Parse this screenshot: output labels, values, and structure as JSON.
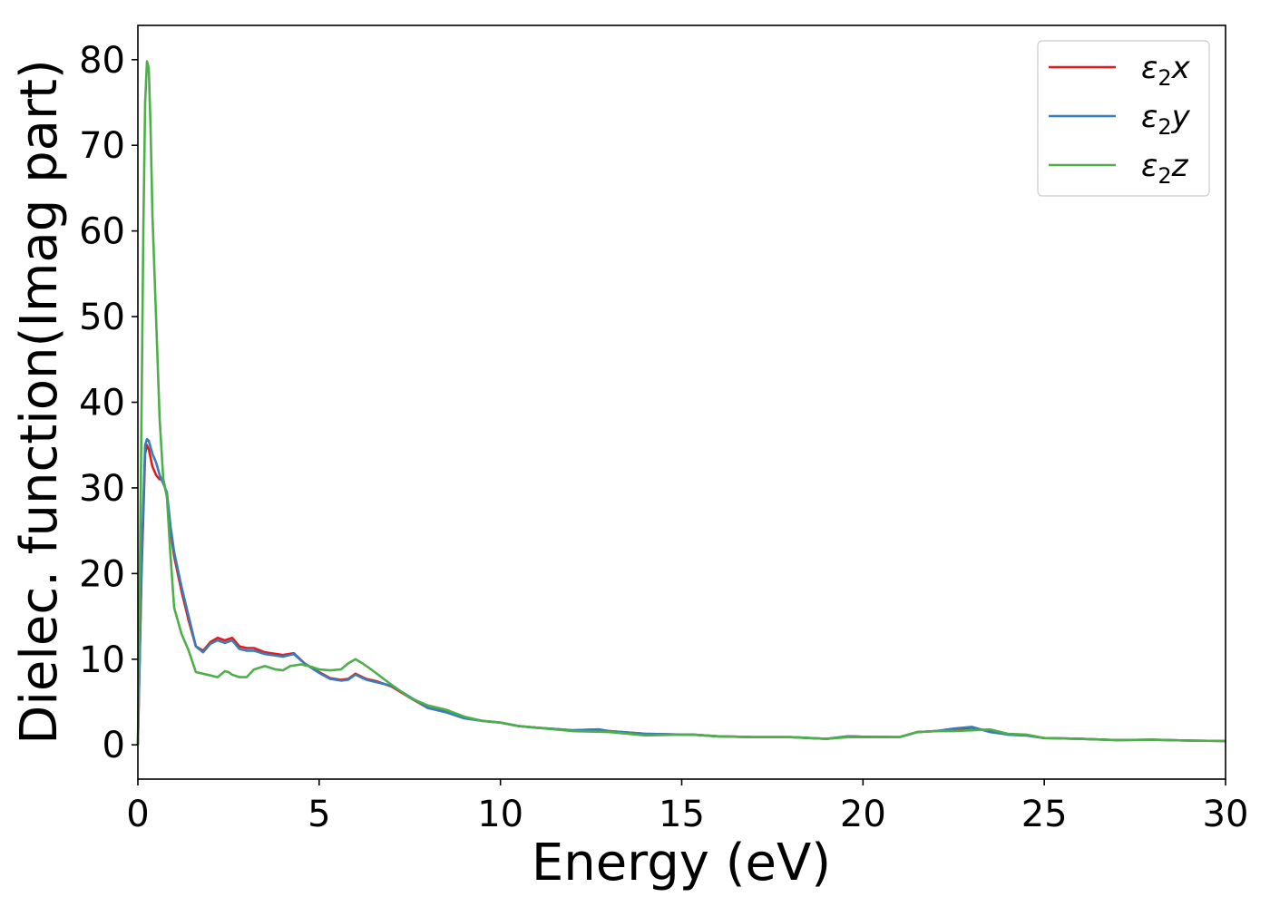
{
  "chart_data": {
    "type": "line",
    "title": "",
    "xlabel": "Energy (eV)",
    "ylabel": "Dielec. function(Imag part)",
    "xlim": [
      0,
      30
    ],
    "ylim": [
      -4,
      84
    ],
    "xticks": [
      0,
      5,
      10,
      15,
      20,
      25,
      30
    ],
    "xtick_labels": [
      "0",
      "5",
      "10",
      "15",
      "20",
      "25",
      "30"
    ],
    "yticks": [
      0,
      10,
      20,
      30,
      40,
      50,
      60,
      70,
      80
    ],
    "ytick_labels": [
      "0",
      "10",
      "20",
      "30",
      "40",
      "50",
      "60",
      "70",
      "80"
    ],
    "grid": false,
    "legend_position": "top-right",
    "series": [
      {
        "name": "ε₂x",
        "legend_base": "ε",
        "legend_sub": "2",
        "legend_suffix": "x",
        "color": "#e41a1c",
        "x": [
          0,
          0.1,
          0.2,
          0.25,
          0.3,
          0.4,
          0.5,
          0.6,
          0.7,
          0.8,
          0.9,
          1.0,
          1.2,
          1.4,
          1.6,
          1.8,
          2.0,
          2.2,
          2.4,
          2.6,
          2.8,
          3.0,
          3.2,
          3.5,
          4.0,
          4.3,
          4.6,
          5.0,
          5.3,
          5.6,
          5.8,
          6.0,
          6.3,
          6.6,
          7.0,
          7.5,
          8.0,
          8.5,
          9.0,
          9.5,
          10,
          10.5,
          11,
          12,
          12.7,
          13,
          14,
          15,
          15.3,
          16,
          17,
          18,
          19,
          19.6,
          20,
          21,
          21.5,
          22,
          22.5,
          23,
          23.5,
          24,
          24.5,
          25,
          26,
          27,
          28,
          29,
          30
        ],
        "y": [
          0,
          20,
          34,
          35,
          34.5,
          32.5,
          31.5,
          31,
          31,
          29,
          25,
          22,
          18,
          14.5,
          11.5,
          11,
          12,
          12.5,
          12.2,
          12.5,
          11.5,
          11.3,
          11.3,
          10.8,
          10.5,
          10.7,
          9.5,
          8.5,
          7.8,
          7.6,
          7.7,
          8.3,
          7.7,
          7.4,
          6.8,
          5.5,
          4.3,
          3.9,
          3.2,
          2.8,
          2.6,
          2.2,
          2.0,
          1.7,
          1.8,
          1.6,
          1.3,
          1.2,
          1.2,
          1.0,
          0.9,
          0.9,
          0.7,
          1.0,
          0.95,
          0.9,
          1.5,
          1.6,
          1.8,
          2.0,
          1.6,
          1.2,
          1.1,
          0.8,
          0.7,
          0.55,
          0.6,
          0.5,
          0.45
        ]
      },
      {
        "name": "ε₂y",
        "legend_base": "ε",
        "legend_sub": "2",
        "legend_suffix": "y",
        "color": "#377eb8",
        "x": [
          0,
          0.1,
          0.2,
          0.25,
          0.3,
          0.4,
          0.5,
          0.6,
          0.7,
          0.8,
          0.9,
          1.0,
          1.2,
          1.4,
          1.6,
          1.8,
          2.0,
          2.2,
          2.4,
          2.6,
          2.8,
          3.0,
          3.2,
          3.5,
          4.0,
          4.3,
          4.6,
          5.0,
          5.3,
          5.6,
          5.8,
          6.0,
          6.3,
          6.6,
          7.0,
          7.5,
          8.0,
          8.5,
          9.0,
          9.5,
          10,
          10.5,
          11,
          12,
          12.7,
          13,
          14,
          15,
          15.3,
          16,
          17,
          18,
          19,
          19.6,
          20,
          21,
          21.5,
          22,
          22.5,
          23,
          23.5,
          24,
          24.5,
          25,
          26,
          27,
          28,
          29,
          30
        ],
        "y": [
          0,
          21,
          35,
          35.7,
          35.5,
          34,
          33,
          31.5,
          30.5,
          29.5,
          25.5,
          22.5,
          18.5,
          15,
          11.5,
          10.8,
          11.8,
          12.2,
          11.9,
          12.2,
          11.2,
          11.0,
          11.0,
          10.6,
          10.3,
          10.6,
          9.5,
          8.4,
          7.7,
          7.5,
          7.6,
          8.2,
          7.6,
          7.3,
          6.9,
          5.6,
          4.3,
          3.8,
          3.1,
          2.8,
          2.6,
          2.2,
          2.0,
          1.7,
          1.8,
          1.6,
          1.3,
          1.2,
          1.2,
          1.0,
          0.9,
          0.9,
          0.7,
          1.0,
          0.95,
          0.9,
          1.5,
          1.6,
          1.9,
          2.1,
          1.5,
          1.2,
          1.1,
          0.8,
          0.7,
          0.55,
          0.6,
          0.5,
          0.45
        ]
      },
      {
        "name": "ε₂z",
        "legend_base": "ε",
        "legend_sub": "2",
        "legend_suffix": "z",
        "color": "#4daf4a",
        "x": [
          0,
          0.08,
          0.15,
          0.2,
          0.25,
          0.3,
          0.35,
          0.4,
          0.5,
          0.6,
          0.7,
          0.8,
          0.9,
          1.0,
          1.2,
          1.4,
          1.6,
          1.8,
          2.0,
          2.2,
          2.4,
          2.5,
          2.6,
          2.8,
          3.0,
          3.2,
          3.5,
          3.8,
          4.0,
          4.2,
          4.5,
          4.8,
          5.0,
          5.3,
          5.6,
          5.8,
          6.0,
          6.2,
          6.5,
          7.0,
          7.5,
          8.0,
          8.5,
          9.0,
          9.5,
          10,
          10.5,
          11,
          12,
          13,
          14,
          15,
          15.3,
          16,
          17,
          18,
          19,
          19.6,
          20,
          21,
          21.5,
          22,
          22.5,
          23,
          23.5,
          24,
          24.5,
          25,
          26,
          27,
          28,
          29,
          30
        ],
        "y": [
          0,
          30,
          60,
          75,
          79.8,
          79,
          72,
          62,
          50,
          38,
          31,
          29,
          22,
          16,
          13,
          11,
          8.5,
          8.3,
          8.1,
          7.9,
          8.6,
          8.5,
          8.2,
          7.9,
          7.9,
          8.8,
          9.2,
          8.8,
          8.7,
          9.2,
          9.4,
          9.1,
          8.8,
          8.7,
          8.8,
          9.5,
          10.0,
          9.5,
          8.6,
          7.0,
          5.5,
          4.6,
          4.1,
          3.3,
          2.8,
          2.6,
          2.2,
          2.0,
          1.6,
          1.5,
          1.1,
          1.2,
          1.2,
          1.0,
          0.9,
          0.9,
          0.7,
          0.9,
          0.9,
          0.9,
          1.5,
          1.6,
          1.6,
          1.7,
          1.8,
          1.3,
          1.2,
          0.8,
          0.7,
          0.55,
          0.6,
          0.5,
          0.45
        ]
      }
    ]
  }
}
